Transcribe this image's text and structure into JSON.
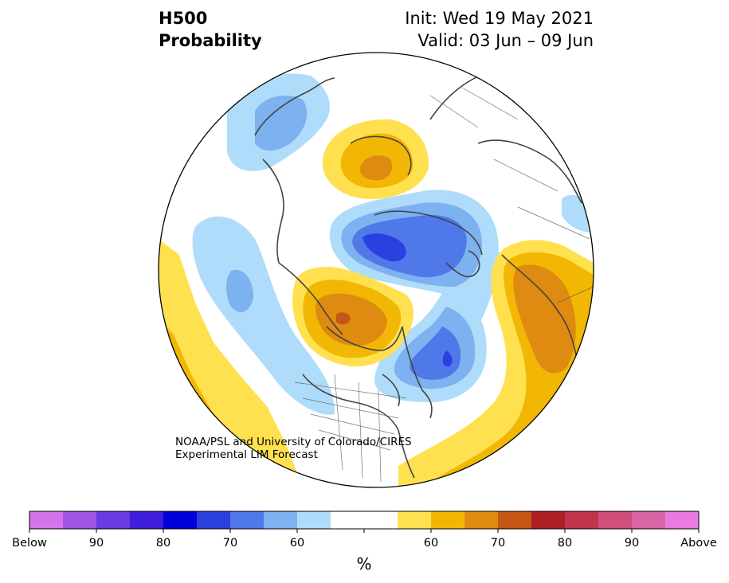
{
  "header": {
    "title_line1": "H500",
    "title_line2": "Probability",
    "init_text": "Init: Wed 19 May 2021",
    "valid_text": "Valid: 03 Jun – 09 Jun"
  },
  "credit": {
    "line1": "NOAA/PSL and University of Colorado/CIRES",
    "line2": "Experimental LIM Forecast"
  },
  "colorbar": {
    "colors": [
      "#d574ea",
      "#9f54e2",
      "#6a3ae2",
      "#3f1ddb",
      "#0000d8",
      "#2c3fdf",
      "#4f78e8",
      "#7db1f0",
      "#aedcfa",
      "#ffffff",
      "#ffffff",
      "#ffe150",
      "#f2b705",
      "#df8a10",
      "#c65615",
      "#ad1f22",
      "#c0344c",
      "#cf4f7a",
      "#d964a5",
      "#e87ae0"
    ],
    "labels": [
      "Below",
      "90",
      "80",
      "70",
      "60",
      "60",
      "70",
      "80",
      "90",
      "Above"
    ],
    "unit": "%"
  },
  "map": {
    "projection": "north-polar-stereographic",
    "field": "500 hPa height probability",
    "colors": {
      "above_60": "#ffe150",
      "above_65": "#f2b705",
      "above_70": "#df8a10",
      "above_75": "#c65615",
      "below_60": "#aedcfa",
      "below_65": "#7db1f0",
      "below_70": "#4f78e8",
      "below_75": "#2c3fdf",
      "coastline": "#444444"
    }
  }
}
